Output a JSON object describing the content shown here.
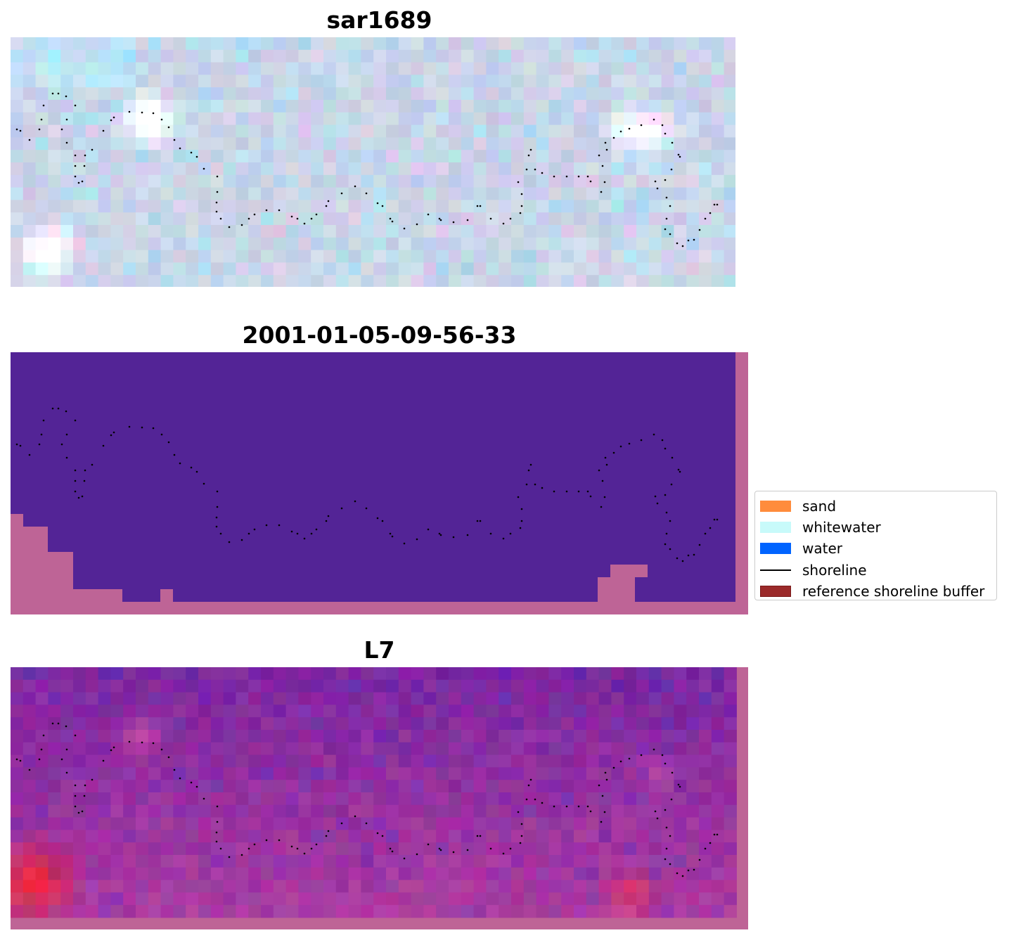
{
  "chart_data": [
    {
      "type": "image",
      "title": "sar1689",
      "layers": [
        "sar image",
        "shoreline"
      ],
      "xlabel": "",
      "ylabel": ""
    },
    {
      "type": "image",
      "title": "2001-01-05-09-56-33",
      "layers": [
        "classified image",
        "reference shoreline buffer",
        "shoreline"
      ],
      "xlabel": "",
      "ylabel": ""
    },
    {
      "type": "image",
      "title": "L7",
      "layers": [
        "false colour image",
        "reference shoreline buffer",
        "shoreline"
      ],
      "xlabel": "",
      "ylabel": ""
    }
  ],
  "legend": {
    "placement": "center-right",
    "items": [
      {
        "label": "sand",
        "color": "#ff8c3c",
        "kind": "patch"
      },
      {
        "label": "whitewater",
        "color": "#c8fafa",
        "kind": "patch"
      },
      {
        "label": "water",
        "color": "#0064ff",
        "kind": "patch"
      },
      {
        "label": "shoreline",
        "color": "#000000",
        "kind": "line"
      },
      {
        "label": "reference shoreline buffer",
        "color": "#9b2a2a",
        "kind": "patch"
      }
    ]
  },
  "colors": {
    "class_background": "#532496",
    "buffer_overlay": "#be6496",
    "shoreline": "#000000"
  }
}
